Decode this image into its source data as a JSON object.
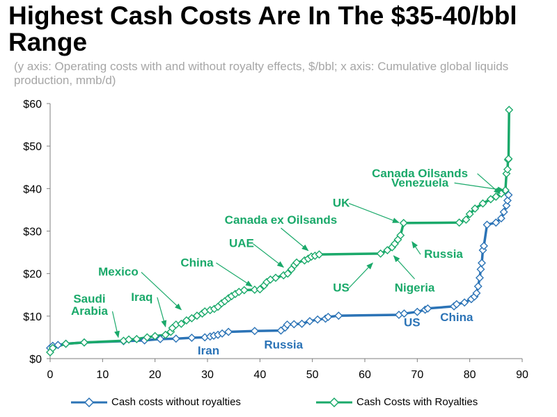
{
  "title": "Highest Cash Costs Are In The $35-40/bbl Range",
  "subtitle": "(y axis: Operating costs with and without royalty effects, $/bbl; x axis: Cumulative global liquids production, mmb/d)",
  "colors": {
    "blue": "#2b73b6",
    "green": "#1aa96a",
    "axis": "#7f7f7f"
  },
  "chart_data": {
    "type": "line",
    "title": "Highest Cash Costs Are In The $35-40/bbl Range",
    "subtitle": "(y axis: Operating costs with and without royalty effects, $/bbl; x axis: Cumulative global liquids production, mmb/d)",
    "xlabel": "",
    "ylabel": "",
    "xlim": [
      0,
      90
    ],
    "ylim": [
      0,
      60
    ],
    "x_ticks": [
      "0",
      "10",
      "20",
      "30",
      "40",
      "50",
      "60",
      "70",
      "80",
      "90"
    ],
    "y_ticks": [
      "$0",
      "$10",
      "$20",
      "$30",
      "$40",
      "$50",
      "$60"
    ],
    "grid": false,
    "legend": "bottom",
    "series": [
      {
        "name": "Cash costs without royalties",
        "color": "#2b73b6",
        "points": [
          [
            0,
            2.5
          ],
          [
            0.5,
            3
          ],
          [
            1.5,
            3.2
          ],
          [
            3,
            3.5
          ],
          [
            6.5,
            3.8
          ],
          [
            14,
            4.1
          ],
          [
            18,
            4.3
          ],
          [
            21,
            4.6
          ],
          [
            24,
            4.7
          ],
          [
            27,
            4.9
          ],
          [
            29.5,
            5.0
          ],
          [
            30.5,
            5.2
          ],
          [
            31.2,
            5.4
          ],
          [
            32,
            5.6
          ],
          [
            32.8,
            5.9
          ],
          [
            34,
            6.3
          ],
          [
            39,
            6.5
          ],
          [
            44,
            6.6
          ],
          [
            44.8,
            7.3
          ],
          [
            45.2,
            8.0
          ],
          [
            46.5,
            8.1
          ],
          [
            48,
            8.2
          ],
          [
            49.5,
            8.8
          ],
          [
            51,
            9.2
          ],
          [
            52.5,
            9.4
          ],
          [
            53,
            9.8
          ],
          [
            55,
            10.1
          ],
          [
            66.5,
            10.3
          ],
          [
            67.5,
            10.6
          ],
          [
            70,
            11
          ],
          [
            71.5,
            11.5
          ],
          [
            72,
            11.8
          ],
          [
            77,
            12.3
          ],
          [
            77.5,
            12.8
          ],
          [
            79,
            13.2
          ],
          [
            80.3,
            14.0
          ],
          [
            80.9,
            14.6
          ],
          [
            81.3,
            15.4
          ],
          [
            81.6,
            17
          ],
          [
            81.9,
            19
          ],
          [
            82.1,
            21
          ],
          [
            82.3,
            22.5
          ],
          [
            82.5,
            25.5
          ],
          [
            82.7,
            26.5
          ],
          [
            83.3,
            31.5
          ],
          [
            85,
            32
          ],
          [
            86,
            33
          ],
          [
            86.5,
            34.5
          ],
          [
            87,
            36
          ],
          [
            87.2,
            37.2
          ],
          [
            87.4,
            38.5
          ]
        ]
      },
      {
        "name": "Cash Costs with Royalties",
        "color": "#1aa96a",
        "points": [
          [
            0,
            1.5
          ],
          [
            0.5,
            2.5
          ],
          [
            3,
            3.5
          ],
          [
            6.5,
            3.8
          ],
          [
            14,
            4.2
          ],
          [
            15,
            4.5
          ],
          [
            16.5,
            4.6
          ],
          [
            18.5,
            5.0
          ],
          [
            20,
            5.3
          ],
          [
            22,
            5.6
          ],
          [
            23,
            6.3
          ],
          [
            23.3,
            7.2
          ],
          [
            24,
            8.0
          ],
          [
            25,
            8.2
          ],
          [
            26,
            9.0
          ],
          [
            27,
            9.5
          ],
          [
            28,
            10.1
          ],
          [
            29,
            10.6
          ],
          [
            29.5,
            11.1
          ],
          [
            30.5,
            11.4
          ],
          [
            31.3,
            11.7
          ],
          [
            32,
            12.2
          ],
          [
            32.7,
            13.0
          ],
          [
            33.3,
            13.5
          ],
          [
            34,
            14.2
          ],
          [
            34.6,
            14.7
          ],
          [
            35.3,
            15.2
          ],
          [
            36,
            15.7
          ],
          [
            37,
            16.1
          ],
          [
            39,
            16.2
          ],
          [
            40,
            16.3
          ],
          [
            40.8,
            17.2
          ],
          [
            41.3,
            18.0
          ],
          [
            42,
            18.6
          ],
          [
            43,
            19.0
          ],
          [
            44.5,
            19.6
          ],
          [
            45.3,
            20.0
          ],
          [
            46,
            21.0
          ],
          [
            46.6,
            22.0
          ],
          [
            47,
            22.6
          ],
          [
            48.5,
            23.1
          ],
          [
            49.2,
            23.5
          ],
          [
            49.8,
            24.0
          ],
          [
            50.5,
            24.2
          ],
          [
            51.3,
            24.5
          ],
          [
            63,
            24.7
          ],
          [
            64.3,
            25.5
          ],
          [
            65.2,
            26.2
          ],
          [
            65.7,
            27.0
          ],
          [
            66.3,
            28.0
          ],
          [
            66.8,
            29.0
          ],
          [
            67.4,
            31.9
          ],
          [
            78,
            32.0
          ],
          [
            79.3,
            32.7
          ],
          [
            80,
            34.0
          ],
          [
            81,
            35.3
          ],
          [
            82.5,
            36.5
          ],
          [
            84,
            37.5
          ],
          [
            85,
            38.1
          ],
          [
            86,
            38.8
          ],
          [
            86.8,
            39.6
          ],
          [
            87,
            43.5
          ],
          [
            87.2,
            44.5
          ],
          [
            87.3,
            46.8
          ],
          [
            87.4,
            47.0
          ],
          [
            87.5,
            58.5
          ]
        ]
      }
    ],
    "annotations": [
      {
        "text": "Canada Oilsands",
        "color": "#1aa96a",
        "x": 70.5,
        "y": 42.7,
        "arrow_to": [
          85.8,
          38.8
        ]
      },
      {
        "text": "Venezuela",
        "color": "#1aa96a",
        "x": 70.5,
        "y": 40.5,
        "arrow_to": [
          86.5,
          39.6
        ]
      },
      {
        "text": "UK",
        "color": "#1aa96a",
        "x": 55.5,
        "y": 35.7,
        "arrow_to": [
          66.5,
          32.0
        ]
      },
      {
        "text": "Canada ex Oilsands",
        "color": "#1aa96a",
        "x": 44,
        "y": 31.7,
        "arrow_to": [
          49.2,
          25.4
        ]
      },
      {
        "text": "UAE",
        "color": "#1aa96a",
        "x": 36.5,
        "y": 26.2,
        "arrow_to": [
          44.5,
          21.5
        ]
      },
      {
        "text": "China",
        "color": "#1aa96a",
        "x": 28,
        "y": 21.7,
        "arrow_to": [
          38.5,
          17.0
        ]
      },
      {
        "text": "Mexico",
        "color": "#1aa96a",
        "x": 13,
        "y": 19.5,
        "arrow_to": [
          25,
          11.5
        ]
      },
      {
        "text": "Iraq",
        "color": "#1aa96a",
        "x": 17.5,
        "y": 13.6,
        "arrow_to": [
          22,
          7.5
        ]
      },
      {
        "text": "Saudi",
        "color": "#1aa96a",
        "x": 7.5,
        "y": 13.2,
        "arrow_to": null
      },
      {
        "text": "Arabia",
        "color": "#1aa96a",
        "x": 7.5,
        "y": 10.3,
        "arrow_to": [
          13,
          5.0
        ]
      },
      {
        "text": "Russia",
        "color": "#1aa96a",
        "x": 75,
        "y": 23.7,
        "arrow_to": [
          69,
          27.5
        ]
      },
      {
        "text": "US",
        "color": "#1aa96a",
        "x": 55.5,
        "y": 15.8,
        "arrow_to": [
          61.5,
          22.5
        ]
      },
      {
        "text": "Nigeria",
        "color": "#1aa96a",
        "x": 69.5,
        "y": 15.8,
        "arrow_to": [
          65.5,
          24.2
        ]
      },
      {
        "text": "US",
        "color": "#2b73b6",
        "x": 69,
        "y": 7.6,
        "arrow_to": null
      },
      {
        "text": "China",
        "color": "#2b73b6",
        "x": 77.5,
        "y": 8.8,
        "arrow_to": null
      },
      {
        "text": "Iran",
        "color": "#2b73b6",
        "x": 30.2,
        "y": 1.0,
        "arrow_to": null
      },
      {
        "text": "Russia",
        "color": "#2b73b6",
        "x": 44.5,
        "y": 2.4,
        "arrow_to": null
      }
    ]
  },
  "legend": {
    "items": [
      {
        "label": "Cash costs without royalties",
        "color": "#2b73b6"
      },
      {
        "label": "Cash Costs with Royalties",
        "color": "#1aa96a"
      }
    ]
  }
}
